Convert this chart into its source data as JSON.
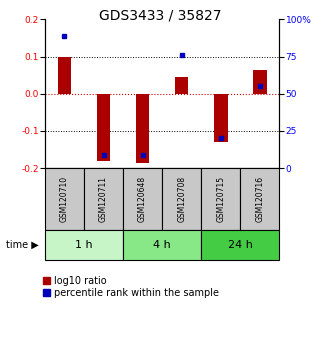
{
  "title": "GDS3433 / 35827",
  "samples": [
    "GSM120710",
    "GSM120711",
    "GSM120648",
    "GSM120708",
    "GSM120715",
    "GSM120716"
  ],
  "log10_ratio": [
    0.1,
    -0.18,
    -0.185,
    0.045,
    -0.13,
    0.065
  ],
  "percentile_rank": [
    89,
    9,
    9,
    76,
    20,
    55
  ],
  "ylim_left": [
    -0.2,
    0.2
  ],
  "ylim_right": [
    0,
    100
  ],
  "yticks_left": [
    -0.2,
    -0.1,
    0.0,
    0.1,
    0.2
  ],
  "yticks_right": [
    0,
    25,
    50,
    75,
    100
  ],
  "time_groups": [
    {
      "label": "1 h",
      "start": 0,
      "end": 2,
      "color": "#c8f5c8"
    },
    {
      "label": "4 h",
      "start": 2,
      "end": 4,
      "color": "#88e888"
    },
    {
      "label": "24 h",
      "start": 4,
      "end": 6,
      "color": "#44cc44"
    }
  ],
  "bar_color_red": "#aa0000",
  "bar_color_blue": "#0000bb",
  "bar_width": 0.35,
  "bg_color": "#ffffff",
  "sample_box_color": "#c8c8c8",
  "zero_line_color": "#cc0000",
  "title_fontsize": 10,
  "tick_fontsize": 6.5,
  "legend_fontsize": 7,
  "time_label_fontsize": 8,
  "sample_label_fontsize": 5.5
}
